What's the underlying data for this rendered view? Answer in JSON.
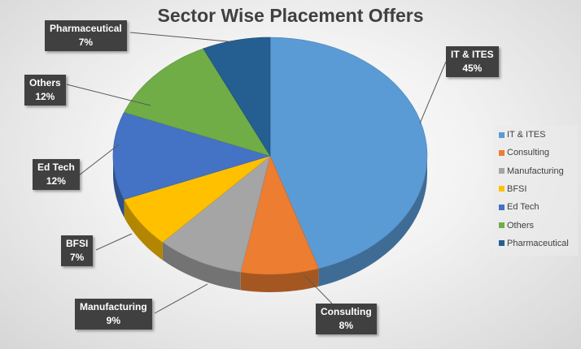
{
  "chart_data": {
    "type": "pie",
    "style": "3d",
    "title": "Sector Wise Placement Offers",
    "legend_position": "right",
    "slices": [
      {
        "name": "IT & ITES",
        "value": 45,
        "label": "45%",
        "color": "#5B9BD5"
      },
      {
        "name": "Consulting",
        "value": 8,
        "label": "8%",
        "color": "#ED7D31"
      },
      {
        "name": "Manufacturing",
        "value": 9,
        "label": "9%",
        "color": "#A5A5A5"
      },
      {
        "name": "BFSI",
        "value": 7,
        "label": "7%",
        "color": "#FFC000"
      },
      {
        "name": "Ed Tech",
        "value": 12,
        "label": "12%",
        "color": "#4472C4"
      },
      {
        "name": "Others",
        "value": 12,
        "label": "12%",
        "color": "#70AD47"
      },
      {
        "name": "Pharmaceutical",
        "value": 7,
        "label": "7%",
        "color": "#255E91"
      }
    ]
  }
}
